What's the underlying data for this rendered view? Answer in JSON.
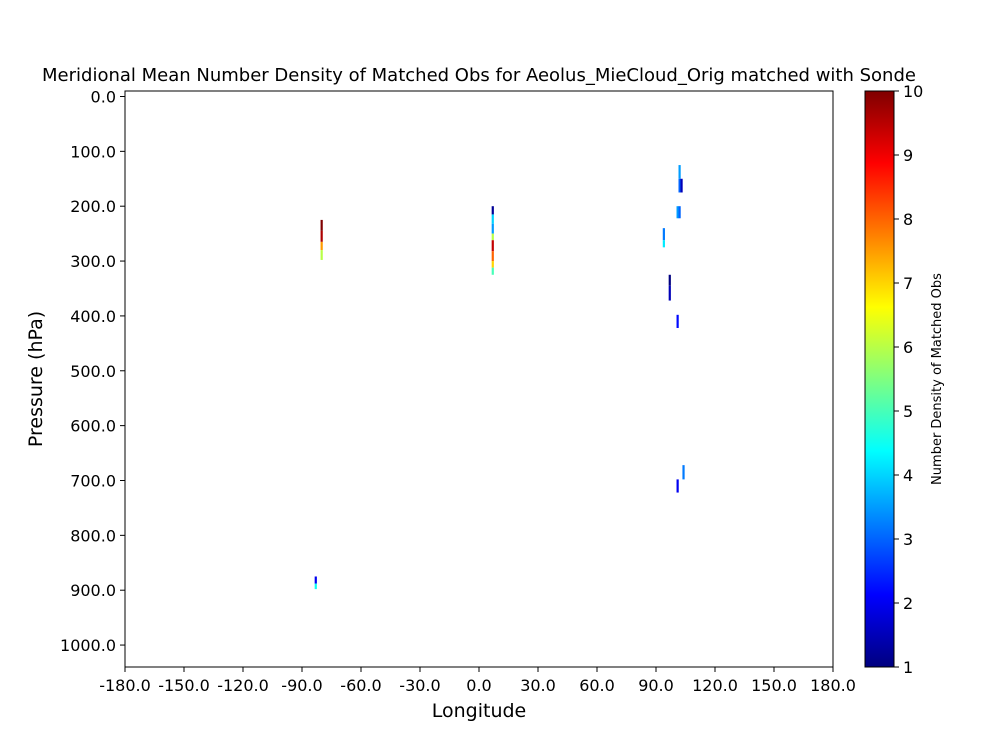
{
  "chart_data": {
    "type": "heatmap",
    "title": "Meridional Mean Number Density of Matched Obs for Aeolus_MieCloud_Orig matched with Sonde",
    "xlabel": "Longitude",
    "ylabel": "Pressure (hPa)",
    "colorbar_label": "Number Density of Matched Obs",
    "colormap": "jet",
    "xlim": [
      -180,
      180
    ],
    "ylim": [
      1040,
      -10
    ],
    "y_inverted": true,
    "grid": false,
    "x_ticks": [
      -180,
      -150,
      -120,
      -90,
      -60,
      -30,
      0,
      30,
      60,
      90,
      120,
      150,
      180
    ],
    "x_tick_labels": [
      "-180.0",
      "-150.0",
      "-120.0",
      "-90.0",
      "-60.0",
      "-30.0",
      "0.0",
      "30.0",
      "60.0",
      "90.0",
      "120.0",
      "150.0",
      "180.0"
    ],
    "y_ticks": [
      0,
      100,
      200,
      300,
      400,
      500,
      600,
      700,
      800,
      900,
      1000
    ],
    "y_tick_labels": [
      "0.0",
      "100.0",
      "200.0",
      "300.0",
      "400.0",
      "500.0",
      "600.0",
      "700.0",
      "800.0",
      "900.0",
      "1000.0"
    ],
    "color_range": [
      1,
      10
    ],
    "colorbar_ticks": [
      1,
      2,
      3,
      4,
      5,
      6,
      7,
      8,
      9,
      10
    ],
    "colorbar_tick_labels": [
      "1",
      "2",
      "3",
      "4",
      "5",
      "6",
      "7",
      "8",
      "9",
      "10"
    ],
    "cells": [
      {
        "lon": -80,
        "p_top": 225,
        "p_bottom": 245,
        "value": 10
      },
      {
        "lon": -80,
        "p_top": 245,
        "p_bottom": 265,
        "value": 9.6
      },
      {
        "lon": -80,
        "p_top": 265,
        "p_bottom": 280,
        "value": 7.5
      },
      {
        "lon": -80,
        "p_top": 280,
        "p_bottom": 298,
        "value": 6
      },
      {
        "lon": -83,
        "p_top": 875,
        "p_bottom": 888,
        "value": 2
      },
      {
        "lon": -83,
        "p_top": 888,
        "p_bottom": 898,
        "value": 4.5
      },
      {
        "lon": 7,
        "p_top": 200,
        "p_bottom": 215,
        "value": 1.2
      },
      {
        "lon": 7,
        "p_top": 215,
        "p_bottom": 232,
        "value": 4
      },
      {
        "lon": 7,
        "p_top": 232,
        "p_bottom": 250,
        "value": 3.5
      },
      {
        "lon": 7,
        "p_top": 250,
        "p_bottom": 262,
        "value": 6
      },
      {
        "lon": 7,
        "p_top": 262,
        "p_bottom": 282,
        "value": 9.4
      },
      {
        "lon": 7,
        "p_top": 282,
        "p_bottom": 300,
        "value": 8
      },
      {
        "lon": 7,
        "p_top": 300,
        "p_bottom": 312,
        "value": 7
      },
      {
        "lon": 7,
        "p_top": 312,
        "p_bottom": 325,
        "value": 5
      },
      {
        "lon": 102,
        "p_top": 125,
        "p_bottom": 150,
        "value": 3.5
      },
      {
        "lon": 102,
        "p_top": 150,
        "p_bottom": 175,
        "value": 3
      },
      {
        "lon": 103,
        "p_top": 150,
        "p_bottom": 175,
        "value": 1.5
      },
      {
        "lon": 101,
        "p_top": 200,
        "p_bottom": 222,
        "value": 3.5
      },
      {
        "lon": 102,
        "p_top": 200,
        "p_bottom": 222,
        "value": 3
      },
      {
        "lon": 94,
        "p_top": 240,
        "p_bottom": 262,
        "value": 3.2
      },
      {
        "lon": 94,
        "p_top": 262,
        "p_bottom": 275,
        "value": 4.2
      },
      {
        "lon": 97,
        "p_top": 325,
        "p_bottom": 345,
        "value": 1
      },
      {
        "lon": 97,
        "p_top": 345,
        "p_bottom": 372,
        "value": 1.5
      },
      {
        "lon": 101,
        "p_top": 398,
        "p_bottom": 422,
        "value": 2.2
      },
      {
        "lon": 104,
        "p_top": 672,
        "p_bottom": 698,
        "value": 3.2
      },
      {
        "lon": 101,
        "p_top": 698,
        "p_bottom": 722,
        "value": 2
      }
    ]
  }
}
